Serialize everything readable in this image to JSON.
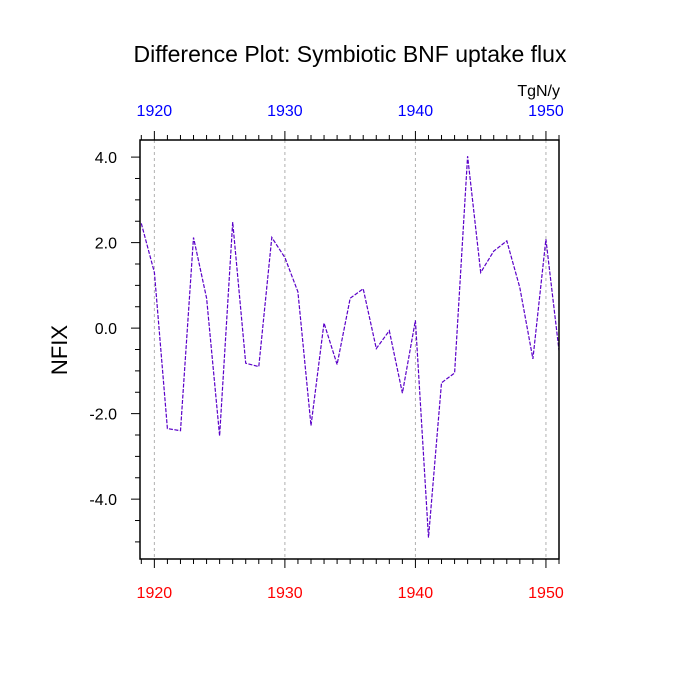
{
  "chart_data": {
    "type": "line",
    "title": "Difference Plot: Symbiotic BNF uptake flux",
    "units": "TgN/y",
    "ylabel": "NFIX",
    "xlabel": "",
    "xlim": [
      1918.9,
      1951.0
    ],
    "ylim": [
      -5.4,
      4.4
    ],
    "x_ticks_bottom": [
      "1920",
      "1930",
      "1940",
      "1950"
    ],
    "x_ticks_top": [
      "1920",
      "1930",
      "1940",
      "1950"
    ],
    "y_ticks": [
      "4.0",
      "2.0",
      "0.0",
      "-2.0",
      "-4.0"
    ],
    "grid": "vertical dashed lines at major x ticks",
    "colors": {
      "bottom_tick_labels": "#ff0000",
      "top_tick_labels": "#0000ff",
      "series_line": "#5a00c8"
    },
    "series": [
      {
        "x": [
          1919,
          1920,
          1921,
          1922,
          1923,
          1924,
          1925,
          1926,
          1927,
          1928,
          1929,
          1930,
          1931,
          1932,
          1933,
          1934,
          1935,
          1936,
          1937,
          1938,
          1939,
          1940,
          1941,
          1942,
          1943,
          1944,
          1945,
          1946,
          1947,
          1948,
          1949,
          1950,
          1951
        ],
        "values": [
          2.45,
          1.3,
          -2.35,
          -2.4,
          2.12,
          0.7,
          -2.52,
          2.48,
          -0.82,
          -0.9,
          2.12,
          1.65,
          0.85,
          -2.28,
          0.12,
          -0.85,
          0.7,
          0.92,
          -0.48,
          -0.06,
          -1.52,
          0.18,
          -4.9,
          -1.28,
          -1.05,
          4.02,
          1.3,
          1.8,
          2.04,
          0.95,
          -0.72,
          2.08,
          -0.52
        ]
      }
    ]
  }
}
